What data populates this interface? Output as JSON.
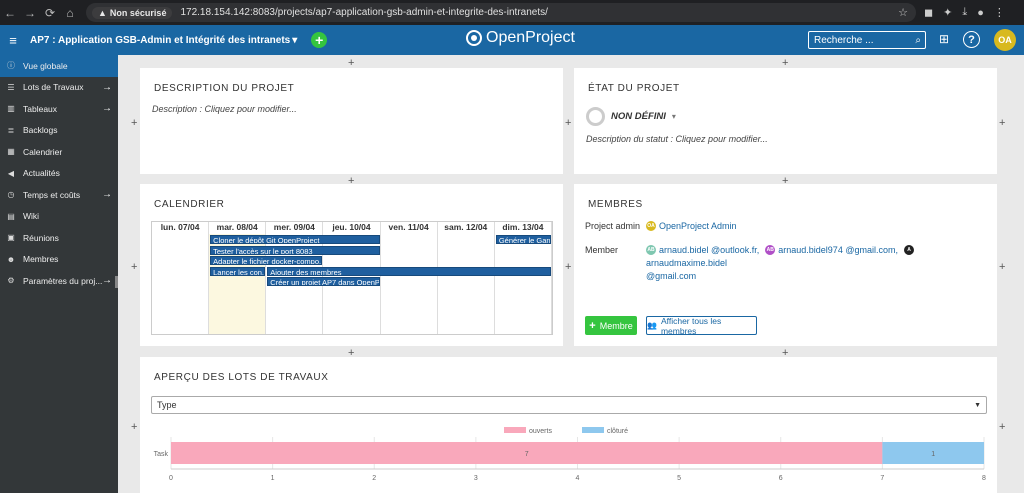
{
  "browser": {
    "security_badge": "Non sécurisé",
    "url": "172.18.154.142:8083/projects/ap7-application-gsb-admin-et-integrite-des-intranets/"
  },
  "header": {
    "project_name": "AP7 : Application GSB-Admin et Intégrité des intranets",
    "logo_text": "OpenProject",
    "search_placeholder": "Recherche ...",
    "avatar_initials": "OA"
  },
  "sidebar": {
    "items": [
      {
        "label": "Vue globale",
        "icon": "info-icon",
        "glyph": "ⓘ",
        "active": true,
        "arrow": false
      },
      {
        "label": "Lots de Travaux",
        "icon": "list-icon",
        "glyph": "☰",
        "active": false,
        "arrow": true
      },
      {
        "label": "Tableaux",
        "icon": "board-icon",
        "glyph": "▥",
        "active": false,
        "arrow": true
      },
      {
        "label": "Backlogs",
        "icon": "backlog-icon",
        "glyph": "≣",
        "active": false,
        "arrow": false
      },
      {
        "label": "Calendrier",
        "icon": "calendar-icon",
        "glyph": "▦",
        "active": false,
        "arrow": false
      },
      {
        "label": "Actualités",
        "icon": "megaphone-icon",
        "glyph": "◀",
        "active": false,
        "arrow": false
      },
      {
        "label": "Temps et coûts",
        "icon": "clock-icon",
        "glyph": "◷",
        "active": false,
        "arrow": true
      },
      {
        "label": "Wiki",
        "icon": "wiki-icon",
        "glyph": "▤",
        "active": false,
        "arrow": false
      },
      {
        "label": "Réunions",
        "icon": "meeting-icon",
        "glyph": "▣",
        "active": false,
        "arrow": false
      },
      {
        "label": "Membres",
        "icon": "members-icon",
        "glyph": "☻",
        "active": false,
        "arrow": false
      },
      {
        "label": "Paramètres du proj...",
        "icon": "settings-icon",
        "glyph": "⚙",
        "active": false,
        "arrow": true
      }
    ]
  },
  "description": {
    "title": "DESCRIPTION DU PROJET",
    "text": "Description : Cliquez pour modifier..."
  },
  "status": {
    "title": "ÉTAT DU PROJET",
    "value": "NON DÉFINI",
    "description": "Description du statut : Cliquez pour modifier..."
  },
  "calendar": {
    "title": "CALENDRIER",
    "days": [
      "lun. 07/04",
      "mar. 08/04",
      "mer. 09/04",
      "jeu. 10/04",
      "ven. 11/04",
      "sam. 12/04",
      "dim. 13/04"
    ],
    "events": [
      {
        "label": "Cloner le dépôt Git OpenProject",
        "start": 1,
        "span": 3,
        "row": 0
      },
      {
        "label": "Générer le Gantt",
        "start": 6,
        "span": 1,
        "row": 0
      },
      {
        "label": "Tester l'accès sur le port 8083",
        "start": 1,
        "span": 3,
        "row": 1
      },
      {
        "label": "Adapter le fichier docker-compo...",
        "start": 1,
        "span": 2,
        "row": 2
      },
      {
        "label": "Lancer les con...",
        "start": 1,
        "span": 1,
        "row": 3
      },
      {
        "label": "Ajouter des membres",
        "start": 2,
        "span": 5,
        "row": 3
      },
      {
        "label": "Créer un projet AP7 dans OpenP...",
        "start": 2,
        "span": 2,
        "row": 4
      }
    ]
  },
  "members": {
    "title": "MEMBRES",
    "admin_label": "Project admin",
    "admin_name": "OpenProject Admin",
    "admin_initials": "OA",
    "member_label": "Member",
    "member_1": "arnaud.bidel @outlook.fr,",
    "member_1_initials": "AB",
    "member_2": "arnaud.bidel974 @gmail.com,",
    "member_2_initials": "AB",
    "member_3": "arnaudmaxime.bidel",
    "member_3_initials": "A",
    "member_3_line2": "@gmail.com",
    "add_button": "Membre",
    "show_all_button": "Afficher tous les membres"
  },
  "workpackages": {
    "title": "APERÇU DES LOTS DE TRAVAUX",
    "select_value": "Type"
  },
  "chart_data": {
    "type": "bar",
    "orientation": "horizontal",
    "stacked": true,
    "categories": [
      "Task"
    ],
    "series": [
      {
        "name": "ouverts",
        "values": [
          7
        ],
        "color": "#f9a8bb"
      },
      {
        "name": "clôturé",
        "values": [
          1
        ],
        "color": "#8ec8ee"
      }
    ],
    "xlim": [
      0,
      8
    ],
    "xticks": [
      "0",
      "1",
      "2",
      "3",
      "4",
      "5",
      "6",
      "7",
      "8"
    ],
    "legend": "top-center",
    "grid": true
  },
  "colors": {
    "header_blue": "#1a67a3",
    "green": "#35c53f",
    "sidebar_bg": "#333739"
  }
}
